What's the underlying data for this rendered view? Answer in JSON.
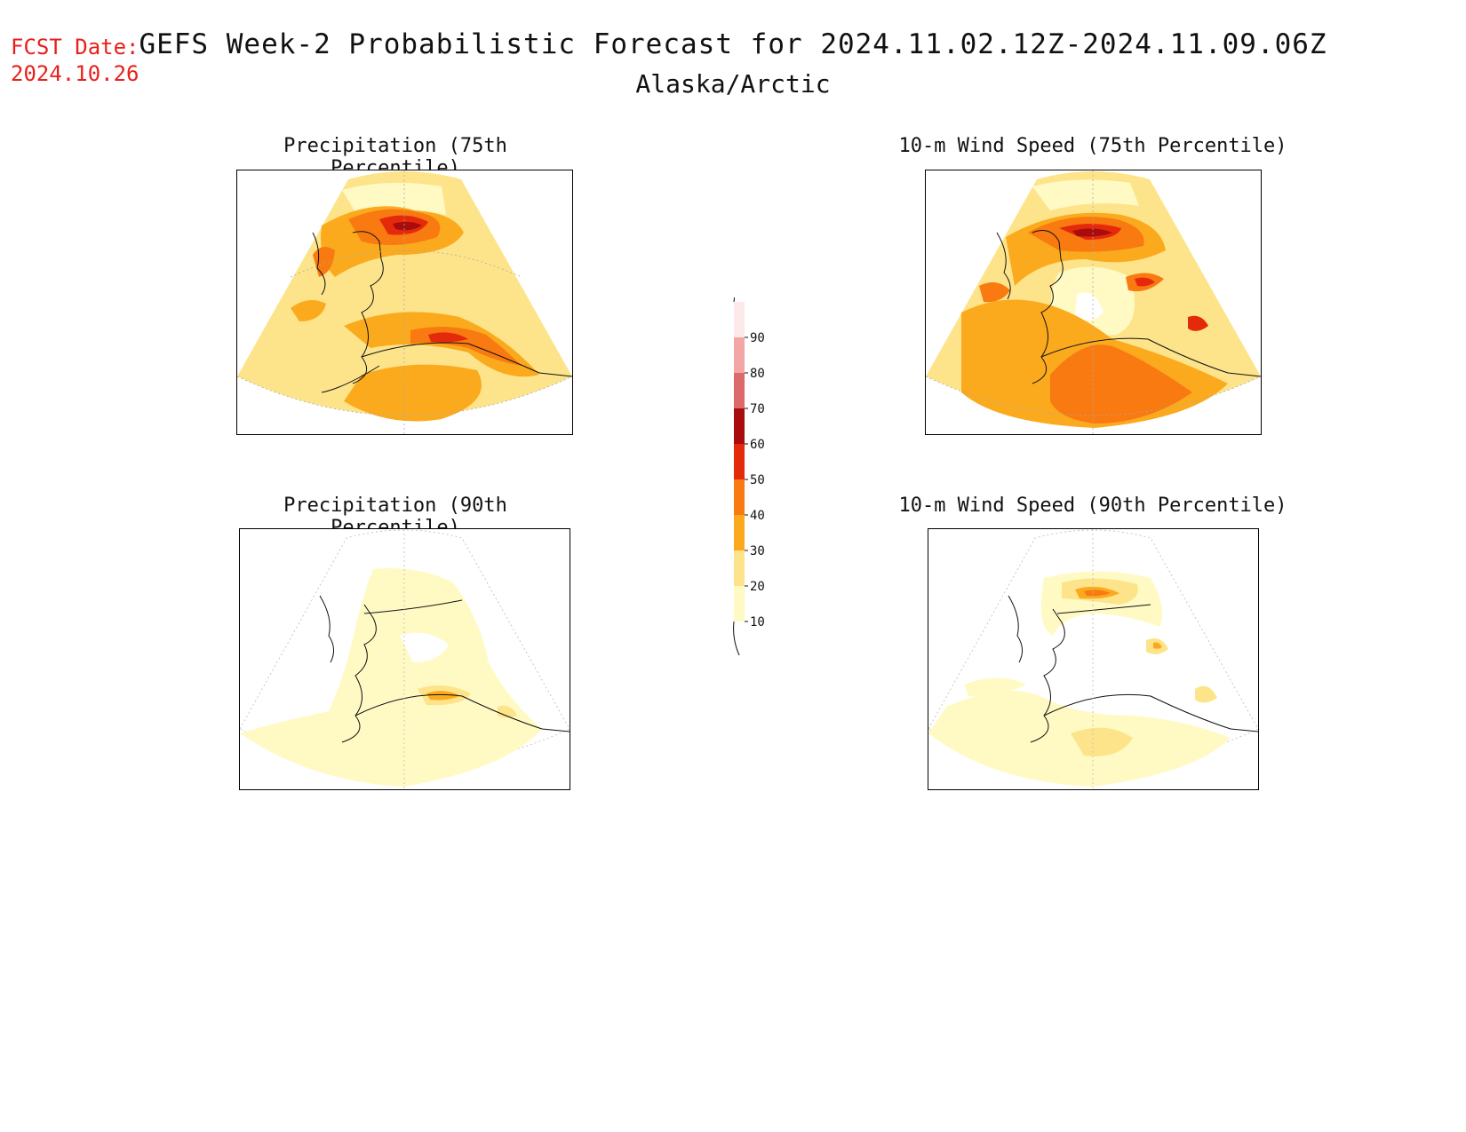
{
  "header": {
    "fcst_label": "FCST Date:",
    "fcst_date": "2024.10.26",
    "title": "GEFS Week-2 Probabilistic Forecast for 2024.11.02.12Z-2024.11.09.06Z",
    "region": "Alaska/Arctic"
  },
  "panels": [
    {
      "title": "Precipitation (75th Percentile)"
    },
    {
      "title": "10-m Wind Speed (75th Percentile)"
    },
    {
      "title": "Precipitation (90th Percentile)"
    },
    {
      "title": "10-m Wind Speed (90th Percentile)"
    }
  ],
  "legend": {
    "levels": [
      10,
      20,
      30,
      40,
      50,
      60,
      70,
      80,
      90
    ],
    "labels": [
      "10",
      "20",
      "30",
      "40",
      "50",
      "60",
      "70",
      "80",
      "90"
    ],
    "colors": [
      "#fffac4",
      "#fde48a",
      "#fbaa1e",
      "#f87a10",
      "#e52a0c",
      "#a80c0c",
      "#dc6a6a",
      "#f2a6a6",
      "#fde9e9"
    ]
  }
}
